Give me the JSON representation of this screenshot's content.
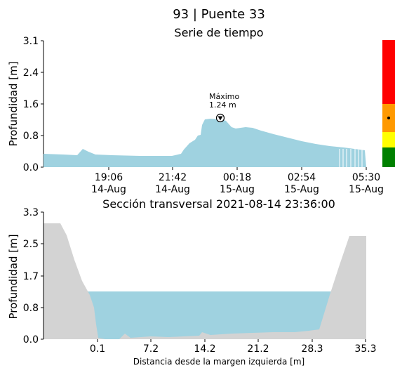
{
  "title": "93 | Puente 33",
  "charts": {
    "timeseries": {
      "subtitle": "Serie de tiempo",
      "ylabel": "Profundidad [m]",
      "yticks": [
        "3.1",
        "2.4",
        "1.6",
        "0.8",
        "0.0"
      ],
      "xticks": [
        {
          "time": "19:06",
          "date": "14-Aug"
        },
        {
          "time": "21:42",
          "date": "14-Aug"
        },
        {
          "time": "00:18",
          "date": "15-Aug"
        },
        {
          "time": "02:54",
          "date": "15-Aug"
        },
        {
          "time": "05:30",
          "date": "15-Aug"
        }
      ],
      "annotation": {
        "label": "Máximo",
        "value": "1.24 m"
      },
      "fill_color": "#9fd2e0",
      "alert_colors": [
        "#ff0000",
        "#ff9900",
        "#ffff00",
        "#008000"
      ]
    },
    "section": {
      "title": "Sección transversal 2021-08-14 23:36:00",
      "ylabel": "Profundidad [m]",
      "xlabel": "Distancia desde la margen izquierda [m]",
      "yticks": [
        "3.3",
        "2.5",
        "1.7",
        "0.8",
        "0.0"
      ],
      "xticks": [
        "0.1",
        "7.2",
        "14.2",
        "21.2",
        "28.3",
        "35.3"
      ],
      "water_color": "#9fd2e0",
      "ground_color": "#d3d3d3"
    }
  },
  "chart_data": [
    {
      "type": "area",
      "title": "Serie de tiempo",
      "ylabel": "Profundidad [m]",
      "ylim": [
        0,
        3.1
      ],
      "x": [
        "17:30",
        "18:00",
        "18:30",
        "19:06",
        "19:30",
        "20:00",
        "21:00",
        "21:42",
        "22:00",
        "22:30",
        "22:50",
        "23:10",
        "23:36",
        "00:00",
        "00:18",
        "00:30",
        "01:00",
        "01:30",
        "02:00",
        "02:54",
        "04:00",
        "05:00",
        "05:30"
      ],
      "series": [
        {
          "values": [
            0.33,
            0.31,
            0.45,
            0.31,
            0.29,
            0.28,
            0.27,
            0.3,
            0.5,
            0.75,
            0.8,
            1.2,
            1.24,
            1.15,
            1.05,
            0.96,
            0.98,
            0.9,
            0.82,
            0.7,
            0.55,
            0.42,
            0.38
          ]
        }
      ],
      "annotations": [
        {
          "text": "Máximo 1.24 m",
          "x": "23:36",
          "y": 1.24
        }
      ]
    },
    {
      "type": "area",
      "title": "Sección transversal 2021-08-14 23:36:00",
      "xlabel": "Distancia desde la margen izquierda [m]",
      "ylabel": "Profundidad [m]",
      "ylim": [
        0,
        3.3
      ],
      "xlim": [
        -5.9,
        35.3
      ],
      "ground_x": [
        -5.9,
        -3.8,
        -2.5,
        -1.5,
        -0.5,
        0.1,
        1.0,
        3.0,
        3.8,
        5.0,
        7.2,
        10.0,
        14.2,
        15.0,
        18.0,
        21.2,
        24.0,
        26.0,
        28.3,
        29.0,
        31.0,
        33.3,
        35.3
      ],
      "ground_y": [
        3.0,
        3.0,
        2.7,
        1.9,
        1.2,
        0.1,
        0.02,
        0.0,
        0.15,
        0.05,
        0.1,
        0.08,
        0.1,
        0.15,
        0.18,
        0.18,
        0.2,
        0.2,
        0.2,
        0.25,
        1.5,
        2.7,
        2.7
      ],
      "water_level": 1.24
    }
  ]
}
